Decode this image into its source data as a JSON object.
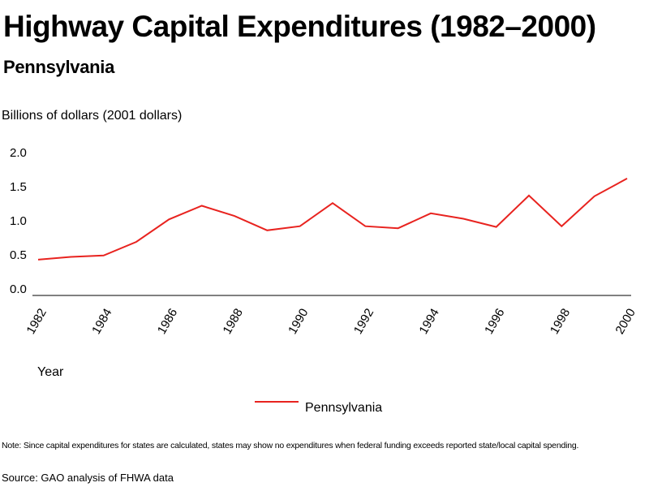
{
  "header": {
    "title": "Highway Capital Expenditures (1982–2000)",
    "subtitle": "Pennsylvania"
  },
  "footer": {
    "note": "Note: Since capital expenditures for states are calculated, states may show no expenditures when federal funding exceeds reported state/local capital spending.",
    "source": "Source: GAO analysis of FHWA data"
  },
  "chart_data": {
    "type": "line",
    "title": "Highway Capital Expenditures (1982–2000)",
    "subtitle": "Pennsylvania",
    "xlabel": "Year",
    "ylabel": "Billions of dollars (2001 dollars)",
    "ylim": [
      0,
      2.0
    ],
    "y_ticks": [
      "0.0",
      "0.5",
      "1.0",
      "1.5",
      "2.0"
    ],
    "x_tick_labels": [
      "1982",
      "1984",
      "1986",
      "1988",
      "1990",
      "1992",
      "1994",
      "1996",
      "1998",
      "2000"
    ],
    "x": [
      1982,
      1983,
      1984,
      1985,
      1986,
      1987,
      1988,
      1989,
      1990,
      1991,
      1992,
      1993,
      1994,
      1995,
      1996,
      1997,
      1998,
      1999,
      2000
    ],
    "series": [
      {
        "name": "Pennsylvania",
        "color": "#e8231f",
        "values": [
          0.43,
          0.47,
          0.49,
          0.69,
          1.02,
          1.22,
          1.07,
          0.86,
          0.92,
          1.26,
          0.92,
          0.89,
          1.11,
          1.03,
          0.91,
          1.37,
          0.92,
          1.36,
          1.62
        ]
      }
    ],
    "grid": false,
    "legend_position": "bottom-center"
  }
}
